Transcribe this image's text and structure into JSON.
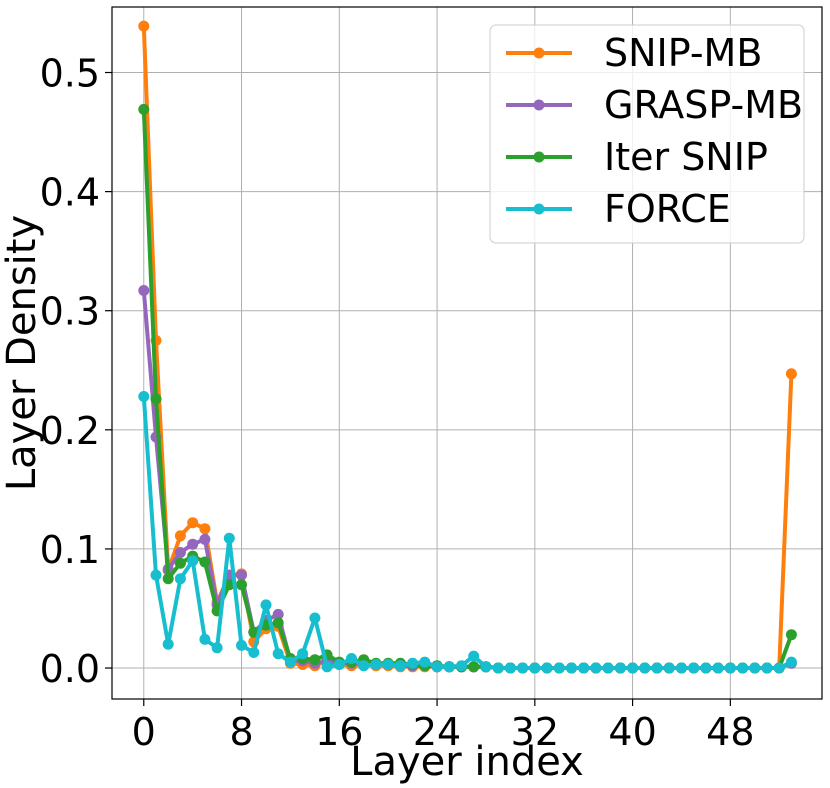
{
  "chart_data": {
    "type": "line",
    "title": "",
    "xlabel": "Layer index",
    "ylabel": "Layer Density",
    "xlim": [
      -2.6,
      55.5
    ],
    "ylim": [
      -0.026,
      0.555
    ],
    "xticks": [
      0,
      8,
      16,
      24,
      32,
      40,
      48
    ],
    "xtick_labels": [
      "0",
      "8",
      "16",
      "24",
      "32",
      "40",
      "48"
    ],
    "yticks": [
      0.0,
      0.1,
      0.2,
      0.3,
      0.4,
      0.5
    ],
    "ytick_labels": [
      "0.0",
      "0.1",
      "0.2",
      "0.3",
      "0.4",
      "0.5"
    ],
    "grid": true,
    "legend_position": "top-right",
    "series": [
      {
        "name": "SNIP-MB",
        "color": "#ff7f0e",
        "x": [
          0,
          1,
          2,
          3,
          4,
          5,
          6,
          7,
          8,
          9,
          10,
          11,
          12,
          13,
          14,
          15,
          16,
          17,
          18,
          19,
          20,
          21,
          22,
          23,
          24,
          25,
          26,
          27,
          28,
          29,
          30,
          31,
          32,
          33,
          34,
          35,
          36,
          37,
          38,
          39,
          40,
          41,
          42,
          43,
          44,
          45,
          46,
          47,
          48,
          49,
          50,
          51,
          52,
          53
        ],
        "values": [
          0.539,
          0.275,
          0.082,
          0.111,
          0.122,
          0.117,
          0.055,
          0.078,
          0.079,
          0.022,
          0.033,
          0.035,
          0.004,
          0.003,
          0.002,
          0.006,
          0.003,
          0.002,
          0.003,
          0.002,
          0.002,
          0.001,
          0.001,
          0.001,
          0.001,
          0.001,
          0.001,
          0.001,
          0.001,
          0,
          0,
          0,
          0,
          0,
          0,
          0,
          0,
          0,
          0,
          0,
          0,
          0,
          0,
          0,
          0,
          0,
          0,
          0,
          0,
          0,
          0,
          0,
          0,
          0.247
        ]
      },
      {
        "name": "GRASP-MB",
        "color": "#9467bd",
        "x": [
          0,
          1,
          2,
          3,
          4,
          5,
          6,
          7,
          8,
          9,
          10,
          11,
          12,
          13,
          14,
          15,
          16,
          17,
          18,
          19,
          20,
          21,
          22,
          23,
          24,
          25,
          26,
          27,
          28,
          29,
          30,
          31,
          32,
          33,
          34,
          35,
          36,
          37,
          38,
          39,
          40,
          41,
          42,
          43,
          44,
          45,
          46,
          47,
          48,
          49,
          50,
          51,
          52,
          53
        ],
        "values": [
          0.317,
          0.194,
          0.083,
          0.097,
          0.104,
          0.108,
          0.053,
          0.078,
          0.078,
          0.03,
          0.04,
          0.045,
          0.006,
          0.006,
          0.004,
          0.006,
          0.004,
          0.004,
          0.004,
          0.003,
          0.003,
          0.002,
          0.002,
          0.002,
          0.001,
          0.001,
          0.001,
          0.001,
          0.001,
          0,
          0,
          0,
          0,
          0,
          0,
          0,
          0,
          0,
          0,
          0,
          0,
          0,
          0,
          0,
          0,
          0,
          0,
          0,
          0,
          0,
          0,
          0,
          0,
          0.004
        ]
      },
      {
        "name": "Iter SNIP",
        "color": "#2ca02c",
        "x": [
          0,
          1,
          2,
          3,
          4,
          5,
          6,
          7,
          8,
          9,
          10,
          11,
          12,
          13,
          14,
          15,
          16,
          17,
          18,
          19,
          20,
          21,
          22,
          23,
          24,
          25,
          26,
          27,
          28,
          29,
          30,
          31,
          32,
          33,
          34,
          35,
          36,
          37,
          38,
          39,
          40,
          41,
          42,
          43,
          44,
          45,
          46,
          47,
          48,
          49,
          50,
          51,
          52,
          53
        ],
        "values": [
          0.469,
          0.226,
          0.075,
          0.088,
          0.094,
          0.089,
          0.048,
          0.07,
          0.07,
          0.03,
          0.036,
          0.038,
          0.008,
          0.008,
          0.007,
          0.011,
          0.005,
          0.005,
          0.007,
          0.004,
          0.004,
          0.004,
          0.003,
          0.002,
          0.002,
          0.001,
          0.001,
          0.001,
          0.001,
          0,
          0,
          0,
          0,
          0,
          0,
          0,
          0,
          0,
          0,
          0,
          0,
          0,
          0,
          0,
          0,
          0,
          0,
          0,
          0,
          0,
          0,
          0,
          0,
          0.028
        ]
      },
      {
        "name": "FORCE",
        "color": "#17becf",
        "x": [
          0,
          1,
          2,
          3,
          4,
          5,
          6,
          7,
          8,
          9,
          10,
          11,
          12,
          13,
          14,
          15,
          16,
          17,
          18,
          19,
          20,
          21,
          22,
          23,
          24,
          25,
          26,
          27,
          28,
          29,
          30,
          31,
          32,
          33,
          34,
          35,
          36,
          37,
          38,
          39,
          40,
          41,
          42,
          43,
          44,
          45,
          46,
          47,
          48,
          49,
          50,
          51,
          52,
          53
        ],
        "values": [
          0.228,
          0.078,
          0.02,
          0.075,
          0.09,
          0.024,
          0.017,
          0.109,
          0.019,
          0.013,
          0.053,
          0.012,
          0.005,
          0.012,
          0.042,
          0.001,
          0.003,
          0.008,
          0.002,
          0.003,
          0.003,
          0.002,
          0.004,
          0.005,
          0.001,
          0.001,
          0.002,
          0.01,
          0.001,
          0,
          0,
          0,
          0,
          0,
          0,
          0,
          0,
          0,
          0,
          0,
          0,
          0,
          0,
          0,
          0,
          0,
          0,
          0,
          0,
          0,
          0,
          0,
          0,
          0.005
        ]
      }
    ]
  }
}
